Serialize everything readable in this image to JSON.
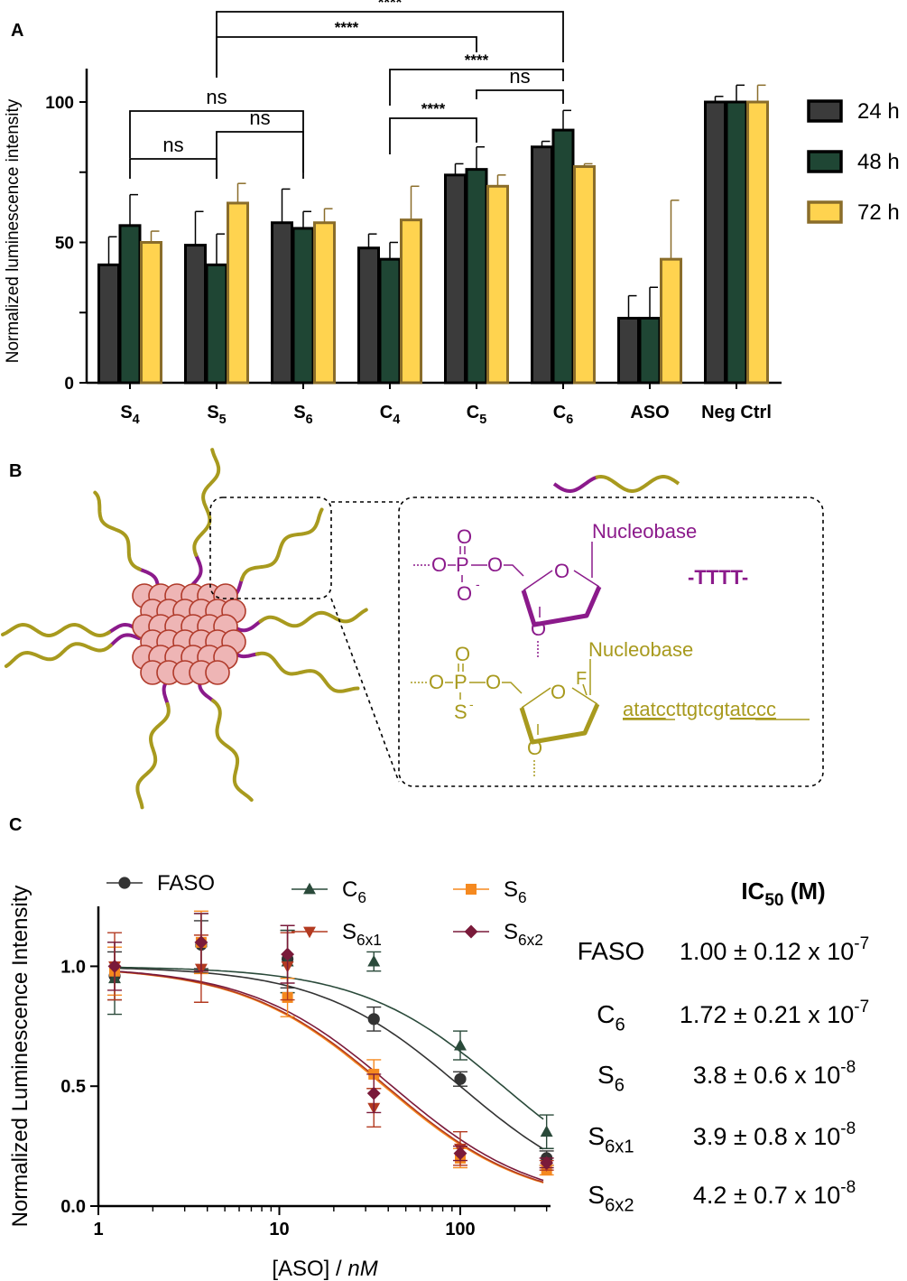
{
  "panel_labels": {
    "a": "A",
    "b": "B",
    "c": "C"
  },
  "colors": {
    "h24": "#3b3b3b",
    "h48": "#1f4634",
    "h72": "#ffd34f",
    "outline_dark": "#000000",
    "outline_72": "#8a6d2a",
    "purple": "#8b1a8b",
    "olive": "#a89a1e",
    "core_fill": "#eeb5b5",
    "core_stroke": "#b03a2a",
    "faso": "#333333",
    "c6": "#2a4a3a",
    "s6": "#f5891f",
    "s6x1": "#b33a20",
    "s6x2": "#7a1a3a"
  },
  "chart_data": [
    {
      "type": "bar",
      "ylabel": "Normalized luminescence intensity",
      "ylim": [
        0,
        100
      ],
      "yticks": [
        "0",
        "50",
        "100"
      ],
      "categories": [
        {
          "base": "S",
          "sub": "4"
        },
        {
          "base": "S",
          "sub": "5"
        },
        {
          "base": "S",
          "sub": "6"
        },
        {
          "base": "C",
          "sub": "4"
        },
        {
          "base": "C",
          "sub": "5"
        },
        {
          "base": "C",
          "sub": "6"
        },
        {
          "base": "ASO",
          "sub": ""
        },
        {
          "base": "Neg Ctrl",
          "sub": ""
        }
      ],
      "series": [
        {
          "name": "24 h",
          "values": [
            42,
            49,
            57,
            48,
            74,
            84,
            23,
            100
          ],
          "errors": [
            10,
            12,
            12,
            5,
            4,
            2,
            8,
            2
          ]
        },
        {
          "name": "48 h",
          "values": [
            56,
            42,
            55,
            44,
            76,
            90,
            23,
            100
          ],
          "errors": [
            11,
            11,
            6,
            6,
            8,
            7,
            11,
            6
          ]
        },
        {
          "name": "72 h",
          "values": [
            50,
            64,
            57,
            58,
            70,
            77,
            44,
            100
          ],
          "errors": [
            4,
            7,
            5,
            12,
            4,
            1,
            21,
            6
          ]
        }
      ],
      "legend": [
        "24 h",
        "48 h",
        "72 h"
      ],
      "legend_position": "right",
      "significance": [
        {
          "label": "ns"
        },
        {
          "label": "ns"
        },
        {
          "label": "ns"
        },
        {
          "label": "****"
        },
        {
          "label": "****"
        },
        {
          "label": "****"
        },
        {
          "label": "ns"
        },
        {
          "label": "****"
        }
      ]
    },
    {
      "type": "scatter",
      "xlabel_main": "[ASO] / ",
      "xlabel_unit": "nM",
      "ylabel": "Normalized Luminescence Intensity",
      "xscale": "log",
      "xlim": [
        1,
        300
      ],
      "ylim": [
        0,
        1.25
      ],
      "xticks": [
        "1",
        "10",
        "100"
      ],
      "yticks": [
        "0.0",
        "0.5",
        "1.0"
      ],
      "x": [
        1.23,
        3.7,
        11.1,
        33.3,
        100,
        300
      ],
      "series": [
        {
          "name": {
            "base": "FASO",
            "sub": ""
          },
          "marker": "circle",
          "values": [
            0.96,
            1.09,
            1.03,
            0.78,
            0.53,
            0.2
          ],
          "errors": [
            0.1,
            0.1,
            0.12,
            0.05,
            0.03,
            0.03
          ],
          "ic50": 100
        },
        {
          "name": {
            "base": "C",
            "sub": "6"
          },
          "marker": "triangle-up",
          "values": [
            0.95,
            1.1,
            1.02,
            1.02,
            0.67,
            0.31
          ],
          "errors": [
            0.15,
            0.12,
            0.13,
            0.04,
            0.06,
            0.07
          ],
          "ic50": 172
        },
        {
          "name": {
            "base": "S",
            "sub": "6"
          },
          "marker": "square",
          "values": [
            0.98,
            1.1,
            0.87,
            0.55,
            0.2,
            0.15
          ],
          "errors": [
            0.1,
            0.13,
            0.08,
            0.06,
            0.04,
            0.02
          ],
          "ic50": 38
        },
        {
          "name": {
            "base": "S",
            "sub": "6x1"
          },
          "marker": "triangle-down",
          "values": [
            1.0,
            0.99,
            1.0,
            0.41,
            0.24,
            0.17
          ],
          "errors": [
            0.14,
            0.14,
            0.14,
            0.08,
            0.07,
            0.02
          ],
          "ic50": 39
        },
        {
          "name": {
            "base": "S",
            "sub": "6x2"
          },
          "marker": "diamond",
          "values": [
            1.0,
            1.1,
            1.05,
            0.47,
            0.22,
            0.18
          ],
          "errors": [
            0.1,
            0.12,
            0.12,
            0.08,
            0.03,
            0.02
          ],
          "ic50": 42
        }
      ],
      "table_title": {
        "base": "IC",
        "sub": "50",
        "rest": " (M)"
      },
      "table_rows": [
        {
          "name": "FASO",
          "sub": "",
          "value": "1.00 ± 0.12 x 10",
          "exp": "-7"
        },
        {
          "name": "C",
          "sub": "6",
          "value": "1.72 ± 0.21 x 10",
          "exp": "-7"
        },
        {
          "name": "S",
          "sub": "6",
          "value": "3.8 ± 0.6 x 10",
          "exp": "-8"
        },
        {
          "name": "S",
          "sub": "6x1",
          "value": "3.9 ± 0.8 x 10",
          "exp": "-8"
        },
        {
          "name": "S",
          "sub": "6x2",
          "value": "4.2 ± 0.7 x 10",
          "exp": "-8"
        }
      ]
    }
  ],
  "diagram": {
    "nucleobase_top": "Nucleobase",
    "nucleobase_bottom": "Nucleobase",
    "tttt": "-TTTT-",
    "phosphate_top": {
      "o_top": "O",
      "o_bottom": "O",
      "minus": "-",
      "o_right": "O",
      "o_sugar": "O",
      "o_down": "O",
      "left": "O",
      "p": "P"
    },
    "phosphate_bottom": {
      "o_top": "O",
      "s": "S",
      "minus": "-",
      "o_right": "O",
      "o_sugar": "O",
      "o_down": "O",
      "left": "O",
      "p": "P",
      "f": "F"
    },
    "sequence": {
      "u1": "atatc",
      "mid": "cttgtcgt",
      "u2": "atccc"
    }
  }
}
